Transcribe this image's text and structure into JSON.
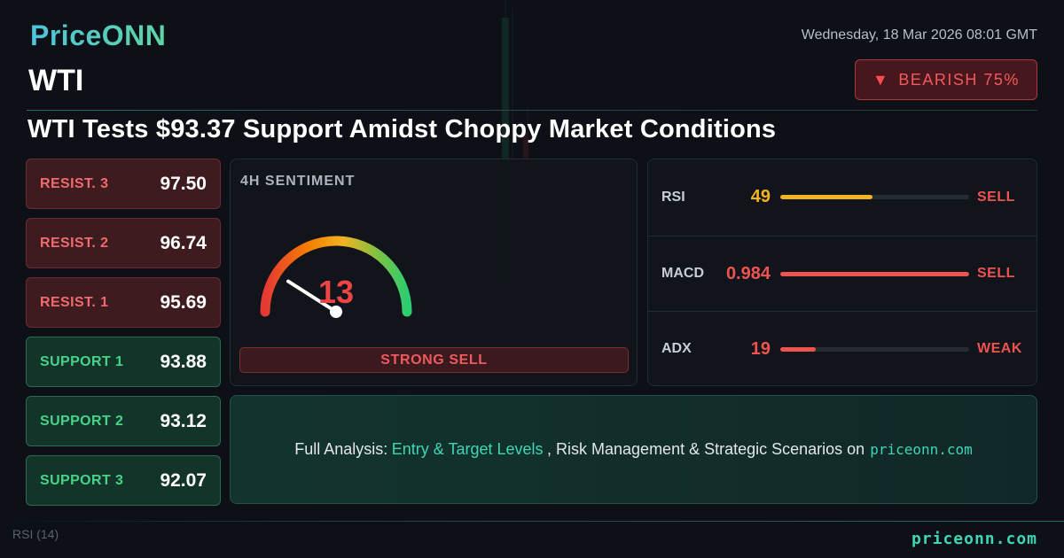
{
  "brand": {
    "logo": "PriceONN",
    "footer_site": "priceonn.com",
    "accent": "#3fd6b3"
  },
  "header": {
    "datetime": "Wednesday, 18 Mar 2026 08:01 GMT",
    "symbol": "WTI",
    "badge": {
      "arrow": "▼",
      "label": "BEARISH 75%",
      "color": "#f05a5e"
    }
  },
  "headline": "WTI Tests $93.37 Support Amidst Choppy Market Conditions",
  "levels": [
    {
      "label": "RESIST. 3",
      "value": "97.50",
      "kind": "resistance"
    },
    {
      "label": "RESIST. 2",
      "value": "96.74",
      "kind": "resistance"
    },
    {
      "label": "RESIST. 1",
      "value": "95.69",
      "kind": "resistance"
    },
    {
      "label": "SUPPORT 1",
      "value": "93.88",
      "kind": "support"
    },
    {
      "label": "SUPPORT 2",
      "value": "93.12",
      "kind": "support"
    },
    {
      "label": "SUPPORT 3",
      "value": "92.07",
      "kind": "support"
    }
  ],
  "sentiment": {
    "title": "4H SENTIMENT",
    "score": "13",
    "score_fraction": 0.13,
    "verdict": "STRONG SELL"
  },
  "indicators": [
    {
      "name": "RSI",
      "value": "49",
      "signal": "SELL",
      "level": 0.49,
      "value_color": "#f2b323",
      "bar_color": "#f2b323"
    },
    {
      "name": "MACD",
      "value": "0.984",
      "signal": "SELL",
      "level": 1.0,
      "value_color": "#ef5350",
      "bar_color": "#ef5350"
    },
    {
      "name": "ADX",
      "value": "19",
      "signal": "WEAK",
      "level": 0.19,
      "value_color": "#ef5350",
      "bar_color": "#ef5350"
    }
  ],
  "cta": {
    "prefix": "Full Analysis:",
    "highlight": "Entry & Target Levels",
    "middle": ", Risk Management & Strategic Scenarios on",
    "site": "priceonn.com"
  },
  "footer": {
    "rsi_label": "RSI",
    "rsi_period": "(14)"
  }
}
